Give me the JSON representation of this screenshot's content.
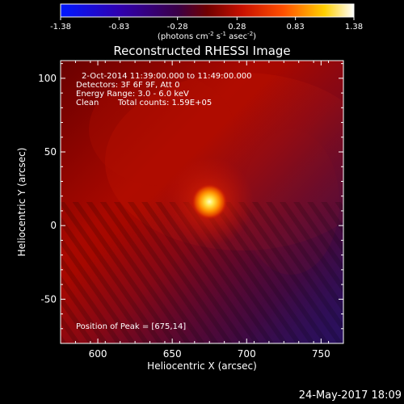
{
  "chart_data": {
    "type": "heatmap",
    "title": "Reconstructed RHESSI Image",
    "xlabel": "Heliocentric X (arcsec)",
    "ylabel": "Heliocentric Y (arcsec)",
    "xlim": [
      575,
      765
    ],
    "ylim": [
      -80,
      112
    ],
    "x_ticks": [
      600,
      650,
      700,
      750
    ],
    "y_ticks": [
      -50,
      0,
      50,
      100
    ],
    "colorbar": {
      "range": [
        -1.38,
        1.38
      ],
      "ticks": [
        "-1.38",
        "-0.83",
        "-0.28",
        "0.28",
        "0.83",
        "1.38"
      ],
      "unit_prefix": "(photons cm",
      "unit_sup1": "-2",
      "unit_mid": " s",
      "unit_sup2": "-1",
      "unit_mid2": " asec",
      "unit_sup3": "-2",
      "unit_suffix": ")",
      "colormap": "RHESSI (blue-purple-red-yellow-white)"
    },
    "annotations": {
      "time_range": "2-Oct-2014 11:39:00.000 to 11:49:00.000",
      "detectors": "Detectors: 3F 6F 9F, Att 0",
      "energy_range": "Energy Range: 3.0 - 6.0 keV",
      "method": "Clean",
      "total_counts": "Total counts: 1.59E+05",
      "peak": "Position of Peak = [675,14]"
    },
    "peak": [
      675,
      14
    ],
    "timestamp": "24-May-2017 18:09"
  }
}
